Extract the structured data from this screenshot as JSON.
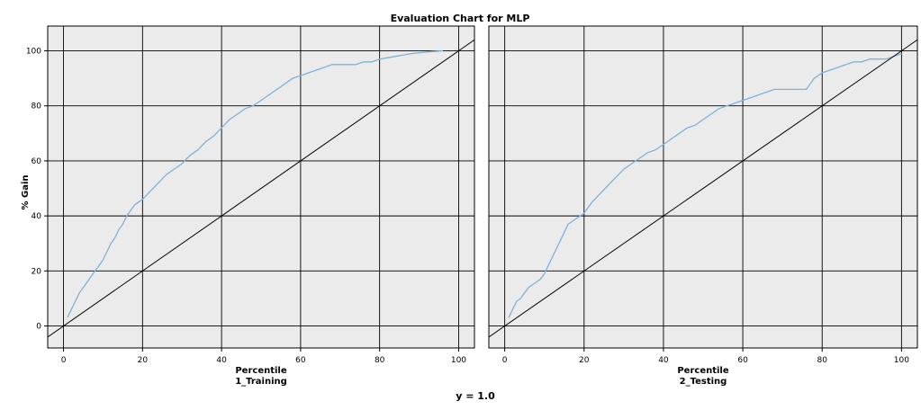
{
  "chart_data": {
    "type": "line",
    "title": "Evaluation Chart for MLP",
    "ylabel": "% Gain",
    "footer": "y = 1.0",
    "xlim": [
      -4,
      104
    ],
    "ylim": [
      -8,
      109
    ],
    "x_ticks": [
      0,
      20,
      40,
      60,
      80,
      100
    ],
    "y_ticks": [
      0,
      20,
      40,
      60,
      80,
      100
    ],
    "grid": true,
    "colors": {
      "gain_line": "#7fb2d6",
      "baseline": "#000000",
      "panel_background": "#ebebeb",
      "gridline": "#000000"
    },
    "panels": [
      {
        "xlabel": "Percentile",
        "sublabel": "1_Training",
        "series": [
          {
            "x": [
              1,
              2,
              3,
              4,
              5,
              6,
              7,
              8,
              9,
              10,
              11,
              12,
              13,
              14,
              15,
              16,
              17,
              18,
              19,
              20,
              22,
              24,
              26,
              28,
              30,
              32,
              34,
              36,
              38,
              40,
              42,
              44,
              46,
              48,
              50,
              52,
              54,
              56,
              58,
              60,
              62,
              64,
              66,
              68,
              70,
              72,
              74,
              76,
              78,
              80,
              82,
              84,
              86,
              88,
              90,
              92,
              94,
              96
            ],
            "values": [
              3,
              6,
              9,
              12,
              14,
              16,
              18,
              20,
              22,
              24,
              27,
              30,
              32,
              35,
              37,
              40,
              42,
              44,
              45,
              46,
              49,
              52,
              55,
              57,
              59,
              62,
              64,
              67,
              69,
              72,
              75,
              77,
              79,
              80,
              82,
              84,
              86,
              88,
              90,
              91,
              92,
              93,
              94,
              95,
              95,
              95,
              95,
              96,
              96,
              97,
              97.5,
              98,
              98.5,
              99,
              99.3,
              99.6,
              99.8,
              100
            ]
          },
          {
            "x": [
              -4,
              104
            ],
            "values": [
              -4,
              104
            ]
          }
        ]
      },
      {
        "xlabel": "Percentile",
        "sublabel": "2_Testing",
        "series": [
          {
            "x": [
              1,
              2,
              3,
              4,
              5,
              6,
              7,
              8,
              9,
              10,
              11,
              12,
              13,
              14,
              15,
              16,
              17,
              18,
              19,
              20,
              21,
              22,
              24,
              26,
              28,
              30,
              32,
              34,
              36,
              38,
              40,
              42,
              44,
              46,
              48,
              50,
              52,
              54,
              56,
              58,
              60,
              62,
              64,
              66,
              68,
              70,
              72,
              74,
              76,
              78,
              80,
              82,
              84,
              86,
              88,
              90,
              92,
              94,
              96,
              98,
              100
            ],
            "values": [
              3,
              6,
              9,
              10,
              12,
              14,
              15,
              16,
              17,
              19,
              22,
              25,
              28,
              31,
              34,
              37,
              38,
              39,
              40,
              41,
              43,
              45,
              48,
              51,
              54,
              57,
              59,
              61,
              63,
              64,
              66,
              68,
              70,
              72,
              73,
              75,
              77,
              79,
              80,
              81,
              82,
              83,
              84,
              85,
              86,
              86,
              86,
              86,
              86,
              90,
              92,
              93,
              94,
              95,
              96,
              96,
              97,
              97,
              97,
              98,
              99
            ]
          },
          {
            "x": [
              -4,
              104
            ],
            "values": [
              -4,
              104
            ]
          }
        ]
      }
    ]
  }
}
